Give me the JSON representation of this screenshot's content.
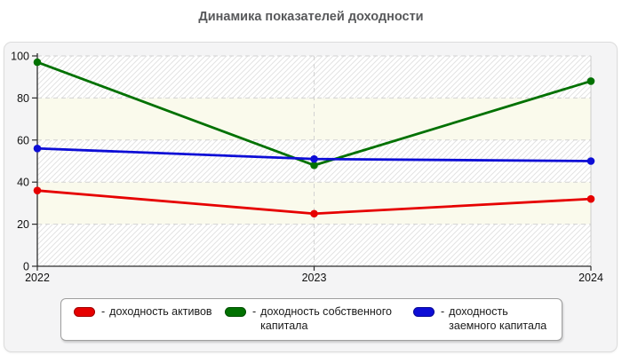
{
  "title": "Динамика показателей доходности",
  "colors": {
    "series_red": "#e60000",
    "series_green": "#017101",
    "series_blue": "#0d0dd6",
    "axis": "#2e2e2e",
    "gridline": "#d2d2d2",
    "band_plain": "#fafaec",
    "band_hatch_line": "#e3e3e3"
  },
  "chart_data": {
    "type": "line",
    "title": "Динамика показателей доходности",
    "categories": [
      "2022",
      "2023",
      "2024"
    ],
    "series": [
      {
        "name": "доходность активов",
        "color": "#e60000",
        "values": [
          36,
          25,
          32
        ]
      },
      {
        "name": "доходность собственного капитала",
        "color": "#017101",
        "values": [
          97,
          48,
          88
        ]
      },
      {
        "name": "доходность заемного капитала",
        "color": "#0d0dd6",
        "values": [
          56,
          51,
          50
        ]
      }
    ],
    "xlabel": "",
    "ylabel": "",
    "ylim": [
      0,
      100
    ],
    "yticks": [
      0,
      20,
      40,
      60,
      80,
      100
    ],
    "grid": "dashed",
    "legend_position": "bottom"
  },
  "legend": {
    "items": [
      {
        "dash": "-",
        "label": "доходность активов",
        "color": "#e60000"
      },
      {
        "dash": "-",
        "label": "доходность собственного капитала",
        "color": "#017101"
      },
      {
        "dash": "-",
        "label": "доходность заемного капитала",
        "color": "#0d0dd6"
      }
    ]
  }
}
